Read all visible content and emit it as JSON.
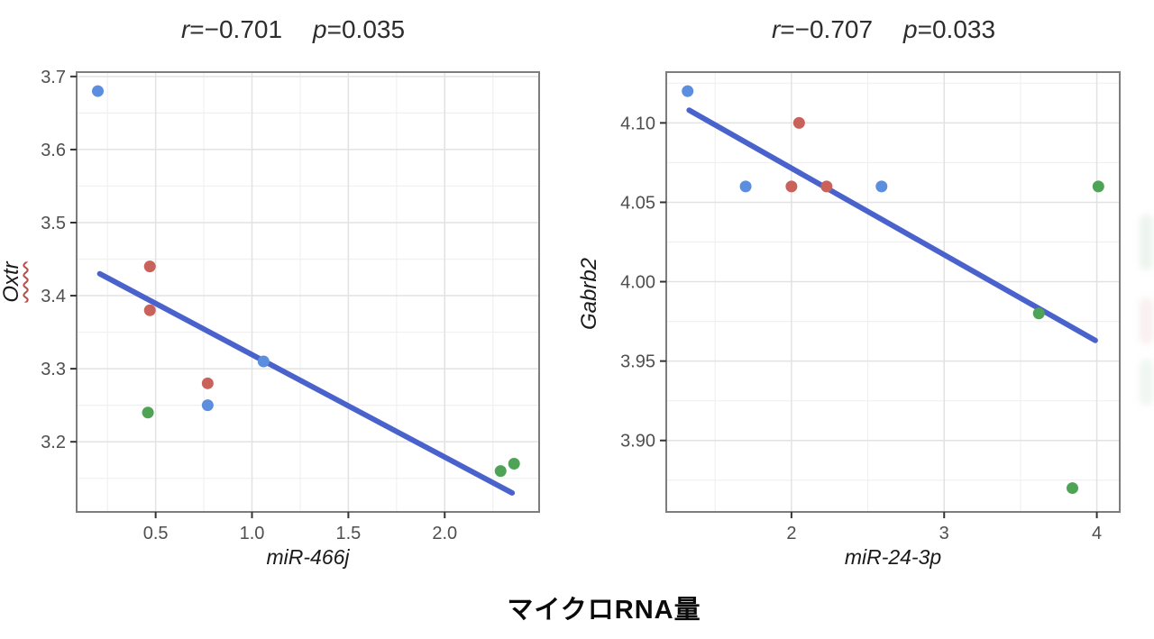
{
  "figure": {
    "background": "#ffffff",
    "bottom_xlabel": "マイクロRNA量"
  },
  "palette": {
    "series_blue": "#5c8ee0",
    "series_red": "#c9625a",
    "series_green": "#4fa356",
    "trend_blue": "#4a62cc",
    "panel_border": "#7d7d7d",
    "grid_major": "#e2e2e2",
    "grid_minor": "#f0f0f0",
    "tick_mark_color": "#333333",
    "tick_label_color": "#4f4f4f",
    "title_color": "#2d2d2d",
    "axis_label_color": "#1a1a1a",
    "spellcheck_squiggle_color": "#b5504b"
  },
  "chart_data": [
    {
      "type": "scatter",
      "title_text": "r=−0.701  p=0.035",
      "title_parts": [
        {
          "text": "r",
          "italic": true
        },
        {
          "text": "=−0.701",
          "italic": false
        },
        {
          "text": " ",
          "italic": false
        },
        {
          "text": "p",
          "italic": true
        },
        {
          "text": "=0.035",
          "italic": false
        }
      ],
      "xlabel": "miR-466j",
      "ylabel": "Oxtr",
      "ylabel_spellcheck_underline": true,
      "xlim": [
        0.09,
        2.49
      ],
      "ylim": [
        3.104,
        3.706
      ],
      "xticks": [
        {
          "v": 0.5,
          "label": "0.5"
        },
        {
          "v": 1.0,
          "label": "1.0"
        },
        {
          "v": 1.5,
          "label": "1.5"
        },
        {
          "v": 2.0,
          "label": "2.0"
        }
      ],
      "yticks": [
        {
          "v": 3.2,
          "label": "3.2"
        },
        {
          "v": 3.3,
          "label": "3.3"
        },
        {
          "v": 3.4,
          "label": "3.4"
        },
        {
          "v": 3.5,
          "label": "3.5"
        },
        {
          "v": 3.6,
          "label": "3.6"
        },
        {
          "v": 3.7,
          "label": "3.7"
        }
      ],
      "xminor": [
        0.25,
        0.75,
        1.25,
        1.75,
        2.25
      ],
      "yminor": [
        3.15,
        3.25,
        3.35,
        3.45,
        3.55,
        3.65
      ],
      "grid": true,
      "legend": "none",
      "series": [
        {
          "name": "group-blue",
          "color_key": "series_blue",
          "points": [
            [
              0.2,
              3.68
            ],
            [
              0.77,
              3.25
            ],
            [
              1.06,
              3.31
            ]
          ]
        },
        {
          "name": "group-red",
          "color_key": "series_red",
          "points": [
            [
              0.47,
              3.44
            ],
            [
              0.47,
              3.38
            ],
            [
              0.77,
              3.28
            ]
          ]
        },
        {
          "name": "group-green",
          "color_key": "series_green",
          "points": [
            [
              0.46,
              3.24
            ],
            [
              2.29,
              3.16
            ],
            [
              2.36,
              3.17
            ]
          ]
        }
      ],
      "trend_line": {
        "x1": 0.21,
        "y1": 3.43,
        "x2": 2.35,
        "y2": 3.13
      }
    },
    {
      "type": "scatter",
      "title_text": "r=−0.707  p=0.033",
      "title_parts": [
        {
          "text": "r",
          "italic": true
        },
        {
          "text": "=−0.707",
          "italic": false
        },
        {
          "text": " ",
          "italic": false
        },
        {
          "text": "p",
          "italic": true
        },
        {
          "text": "=0.033",
          "italic": false
        }
      ],
      "xlabel": "miR-24-3p",
      "ylabel": "Gabrb2",
      "ylabel_spellcheck_underline": false,
      "xlim": [
        1.18,
        4.15
      ],
      "ylim": [
        3.855,
        4.132
      ],
      "xticks": [
        {
          "v": 2,
          "label": "2"
        },
        {
          "v": 3,
          "label": "3"
        },
        {
          "v": 4,
          "label": "4"
        }
      ],
      "yticks": [
        {
          "v": 3.9,
          "label": "3.90"
        },
        {
          "v": 3.95,
          "label": "3.95"
        },
        {
          "v": 4.0,
          "label": "4.00"
        },
        {
          "v": 4.05,
          "label": "4.05"
        },
        {
          "v": 4.1,
          "label": "4.10"
        }
      ],
      "xminor": [
        1.5,
        2.5,
        3.5
      ],
      "yminor": [
        3.875,
        3.925,
        3.975,
        4.025,
        4.075,
        4.125
      ],
      "grid": true,
      "legend": "none",
      "series": [
        {
          "name": "group-blue",
          "color_key": "series_blue",
          "points": [
            [
              1.32,
              4.12
            ],
            [
              1.7,
              4.06
            ],
            [
              2.59,
              4.06
            ]
          ]
        },
        {
          "name": "group-red",
          "color_key": "series_red",
          "points": [
            [
              2.05,
              4.1
            ],
            [
              2.0,
              4.06
            ],
            [
              2.23,
              4.06
            ]
          ]
        },
        {
          "name": "group-green",
          "color_key": "series_green",
          "points": [
            [
              4.01,
              4.06
            ],
            [
              3.62,
              3.98
            ],
            [
              3.84,
              3.87
            ]
          ]
        }
      ],
      "trend_line": {
        "x1": 1.33,
        "y1": 4.108,
        "x2": 3.99,
        "y2": 3.963
      }
    }
  ]
}
